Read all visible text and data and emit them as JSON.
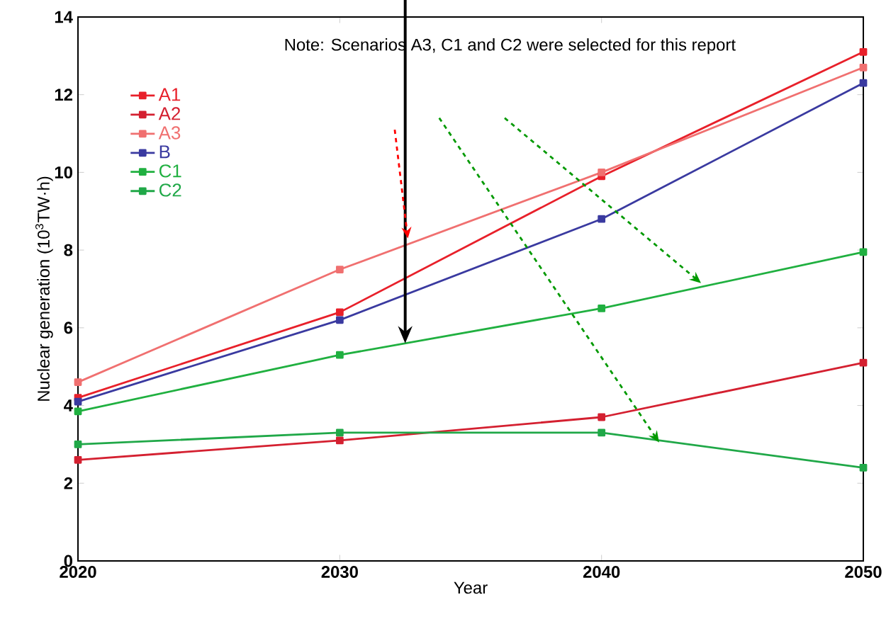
{
  "chart_data": {
    "type": "line",
    "xlabel": "Year",
    "ylabel": "Nuclear generation (10$^{3}$TW·h)",
    "annotations": [
      "Note: Scenarios A3, C1 and C2 were selected for this report"
    ],
    "x": [
      2020,
      2030,
      2040,
      2050
    ],
    "series": [
      {
        "name": "A1",
        "color": "#e8202a",
        "values": [
          4.2,
          6.4,
          9.9,
          13.1
        ]
      },
      {
        "name": "A2",
        "color": "#d42030",
        "values": [
          2.6,
          3.1,
          3.7,
          5.1
        ]
      },
      {
        "name": "A3",
        "color": "#f07070",
        "values": [
          4.6,
          7.5,
          10.0,
          12.7
        ]
      },
      {
        "name": "B",
        "color": "#3a3aa0",
        "values": [
          4.1,
          6.2,
          8.8,
          12.3
        ]
      },
      {
        "name": "C1",
        "color": "#20b040",
        "values": [
          3.85,
          5.3,
          6.5,
          7.95
        ]
      },
      {
        "name": "C2",
        "color": "#20a848",
        "values": [
          3.0,
          3.3,
          3.3,
          2.4
        ]
      }
    ],
    "xlim": [
      2020,
      2050
    ],
    "xticks": [
      2020,
      2030,
      2040,
      2050
    ],
    "ylim": [
      0,
      14
    ],
    "yticks": [
      0,
      2,
      4,
      6,
      8,
      10,
      12,
      14
    ],
    "grid": false,
    "legend": "top left",
    "marker": "square",
    "line_style": "solid"
  }
}
